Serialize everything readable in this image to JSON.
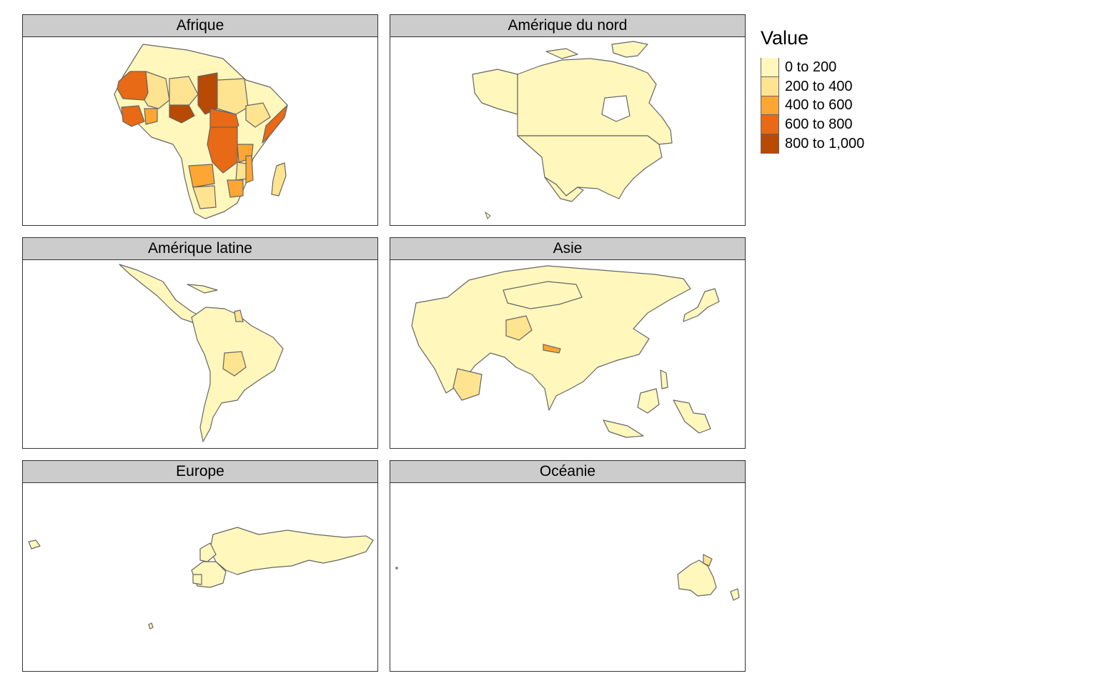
{
  "legend": {
    "title": "Value",
    "items": [
      {
        "label": "0 to 200",
        "color": "#fff7bc"
      },
      {
        "label": "200 to 400",
        "color": "#fee391"
      },
      {
        "label": "400 to 600",
        "color": "#fea633"
      },
      {
        "label": "600 to 800",
        "color": "#e86916"
      },
      {
        "label": "800 to 1,000",
        "color": "#b84a04"
      }
    ]
  },
  "panels": [
    {
      "title": "Afrique"
    },
    {
      "title": "Amérique du nord"
    },
    {
      "title": "Amérique latine"
    },
    {
      "title": "Asie"
    },
    {
      "title": "Europe"
    },
    {
      "title": "Océanie"
    }
  ],
  "colors": {
    "border": "#666666",
    "strip": "#cccccc"
  }
}
